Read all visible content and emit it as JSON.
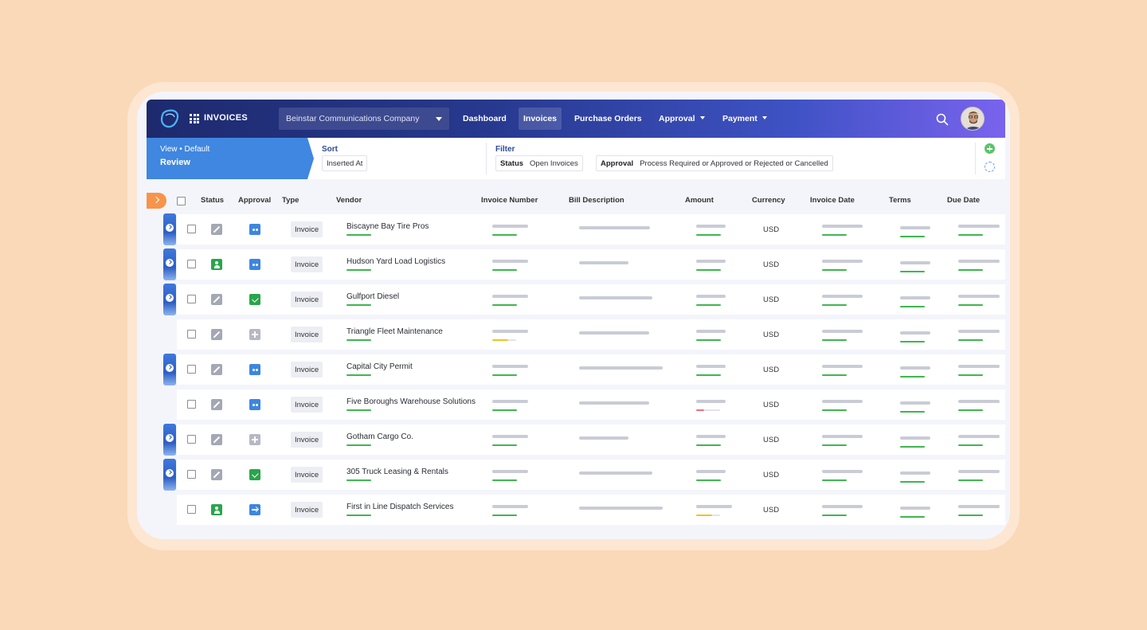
{
  "app": {
    "title": "INVOICES"
  },
  "company_select": {
    "value": "Beinstar Communications Company"
  },
  "nav": [
    {
      "label": "Dashboard",
      "active": false,
      "dropdown": false
    },
    {
      "label": "Invoices",
      "active": true,
      "dropdown": false
    },
    {
      "label": "Purchase Orders",
      "active": false,
      "dropdown": false
    },
    {
      "label": "Approval",
      "active": false,
      "dropdown": true
    },
    {
      "label": "Payment",
      "active": false,
      "dropdown": true
    }
  ],
  "view": {
    "label": "View • Default",
    "name": "Review"
  },
  "sort": {
    "title": "Sort",
    "value": "Inserted At"
  },
  "filter": {
    "title": "Filter",
    "status_label": "Status",
    "status_value": "Open Invoices",
    "approval_label": "Approval",
    "approval_value": "Process Required or Approved or Rejected or Cancelled"
  },
  "columns": [
    "Status",
    "Approval",
    "Type",
    "Vendor",
    "Invoice Number",
    "Bill Description",
    "Amount",
    "Currency",
    "Invoice Date",
    "Terms",
    "Due Date"
  ],
  "rows": [
    {
      "flag": true,
      "status": "edit",
      "approval": "dots",
      "type": "Invoice",
      "vendor": "Biscayne Bay Tire Pros",
      "currency": "USD",
      "amount_bar": "green"
    },
    {
      "flag": true,
      "status": "user",
      "approval": "dots",
      "type": "Invoice",
      "vendor": "Hudson Yard Load Logistics",
      "currency": "USD",
      "amount_bar": "green"
    },
    {
      "flag": true,
      "status": "edit",
      "approval": "check",
      "type": "Invoice",
      "vendor": "Gulfport Diesel",
      "currency": "USD",
      "amount_bar": "green"
    },
    {
      "flag": false,
      "status": "edit",
      "approval": "plus",
      "type": "Invoice",
      "vendor": "Triangle Fleet Maintenance",
      "currency": "USD",
      "amount_bar": "green",
      "invoice_bar": "yellow"
    },
    {
      "flag": true,
      "status": "edit",
      "approval": "dots",
      "type": "Invoice",
      "vendor": "Capital City Permit",
      "currency": "USD",
      "amount_bar": "green"
    },
    {
      "flag": false,
      "status": "edit",
      "approval": "dots",
      "type": "Invoice",
      "vendor": "Five Boroughs Warehouse Solutions",
      "currency": "USD",
      "amount_bar": "red"
    },
    {
      "flag": true,
      "status": "edit",
      "approval": "plus",
      "type": "Invoice",
      "vendor": "Gotham Cargo Co.",
      "currency": "USD",
      "amount_bar": "green"
    },
    {
      "flag": true,
      "status": "edit",
      "approval": "check",
      "type": "Invoice",
      "vendor": "305 Truck Leasing & Rentals",
      "currency": "USD",
      "amount_bar": "green"
    },
    {
      "flag": false,
      "status": "user",
      "approval": "arrow",
      "type": "Invoice",
      "vendor": "First in Line Dispatch Services",
      "currency": "USD",
      "amount_bar": "yellow"
    }
  ],
  "colors": {
    "accent": "#3f87e0",
    "nav_start": "#1e2a6e",
    "nav_end": "#7a63ee",
    "orange": "#f7944a",
    "green": "#3fb64e"
  }
}
